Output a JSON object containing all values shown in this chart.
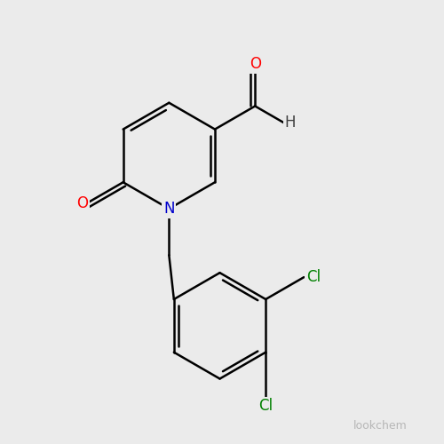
{
  "background_color": "#ebebeb",
  "bond_color": "#000000",
  "bond_width": 1.8,
  "atom_colors": {
    "O_aldehyde": "#ff0000",
    "O_ketone": "#ff0000",
    "N": "#0000cc",
    "Cl": "#008000",
    "C": "#000000",
    "H": "#404040"
  },
  "font_size_label": 12,
  "watermark": "lookchem",
  "watermark_color": "#aaaaaa",
  "watermark_size": 9
}
